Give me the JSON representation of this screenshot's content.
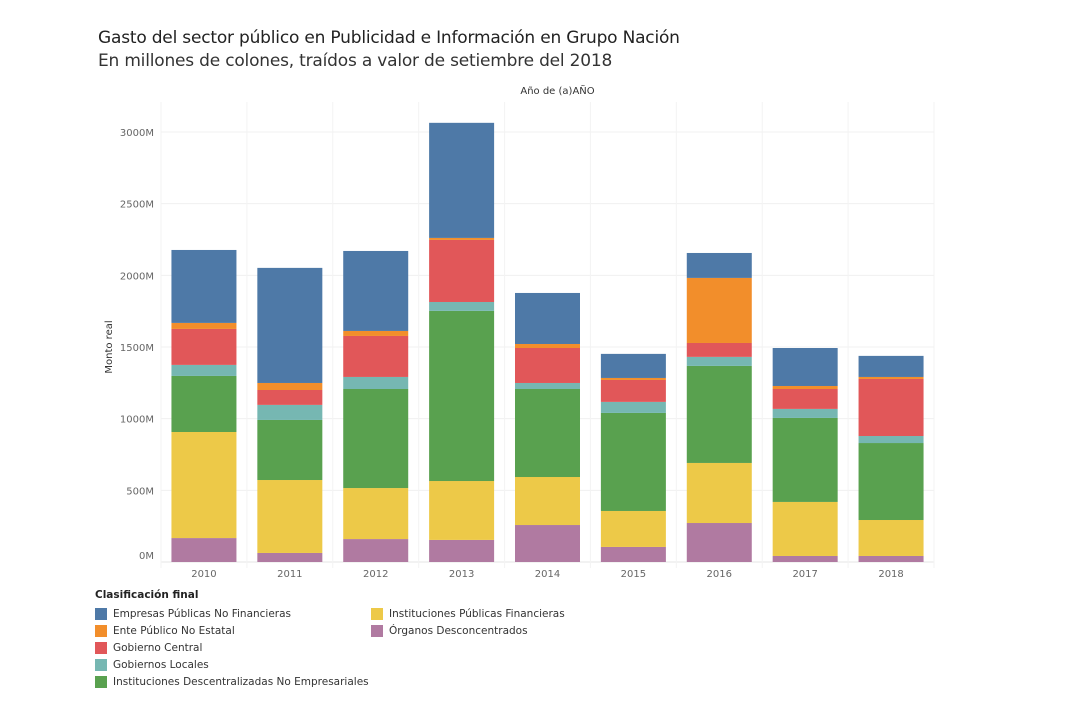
{
  "header": {
    "title": "Gasto del sector público en Publicidad e Información en Grupo Nación",
    "subtitle": "En millones de colones, traídos a valor de setiembre del 2018",
    "column_header": "Año de (a)AÑO"
  },
  "legend": {
    "title": "Clasificación final",
    "items": [
      {
        "label": "Empresas Públicas No Financieras",
        "color": "#4e79a7"
      },
      {
        "label": "Ente Público No Estatal",
        "color": "#f28e2b"
      },
      {
        "label": "Gobierno Central",
        "color": "#e15759"
      },
      {
        "label": "Gobiernos Locales",
        "color": "#76b7b2"
      },
      {
        "label": "Instituciones Descentralizadas No Empresariales",
        "color": "#59a14f"
      },
      {
        "label": "Instituciones Públicas Financieras",
        "color": "#edc948"
      },
      {
        "label": "Órganos Desconcentrados",
        "color": "#b07aa1"
      }
    ]
  },
  "chart_data": {
    "type": "bar",
    "stacked": true,
    "title": "Gasto del sector público en Publicidad e Información en Grupo Nación",
    "subtitle": "En millones de colones, traídos a valor de setiembre del 2018",
    "xlabel": "Año de (a)AÑO",
    "ylabel": "Monto real",
    "ylim": [
      0,
      3000
    ],
    "yticks": [
      0,
      500,
      1000,
      1500,
      2000,
      2500,
      3000
    ],
    "ytick_labels": [
      "0M",
      "500M",
      "1000M",
      "1500M",
      "2000M",
      "2500M",
      "3000M"
    ],
    "grid": true,
    "legend_position": "bottom-left",
    "categories": [
      "2010",
      "2011",
      "2012",
      "2013",
      "2014",
      "2015",
      "2016",
      "2017",
      "2018"
    ],
    "stack_order_bottom_to_top": [
      "Órganos Desconcentrados",
      "Instituciones Públicas Financieras",
      "Instituciones Descentralizadas No Empresariales",
      "Gobiernos Locales",
      "Gobierno Central",
      "Ente Público No Estatal",
      "Empresas Públicas No Financieras"
    ],
    "series": [
      {
        "name": "Órganos Desconcentrados",
        "color": "#b07aa1",
        "values": [
          167,
          63,
          160,
          154,
          258,
          105,
          272,
          42,
          42
        ]
      },
      {
        "name": "Instituciones Públicas Financieras",
        "color": "#edc948",
        "values": [
          740,
          509,
          356,
          411,
          335,
          251,
          419,
          377,
          251
        ]
      },
      {
        "name": "Instituciones Descentralizadas No Empresariales",
        "color": "#59a14f",
        "values": [
          391,
          419,
          691,
          1187,
          614,
          684,
          677,
          586,
          537
        ]
      },
      {
        "name": "Gobiernos Locales",
        "color": "#76b7b2",
        "values": [
          77,
          105,
          84,
          62,
          42,
          77,
          63,
          63,
          49
        ]
      },
      {
        "name": "Gobierno Central",
        "color": "#e15759",
        "values": [
          251,
          104,
          286,
          433,
          244,
          153,
          97,
          139,
          398
        ]
      },
      {
        "name": "Ente Público No Estatal",
        "color": "#f28e2b",
        "values": [
          42,
          49,
          35,
          14,
          28,
          14,
          454,
          21,
          14
        ]
      },
      {
        "name": "Empresas Públicas No Financieras",
        "color": "#4e79a7",
        "values": [
          509,
          803,
          558,
          803,
          356,
          168,
          174,
          265,
          147
        ]
      }
    ]
  }
}
